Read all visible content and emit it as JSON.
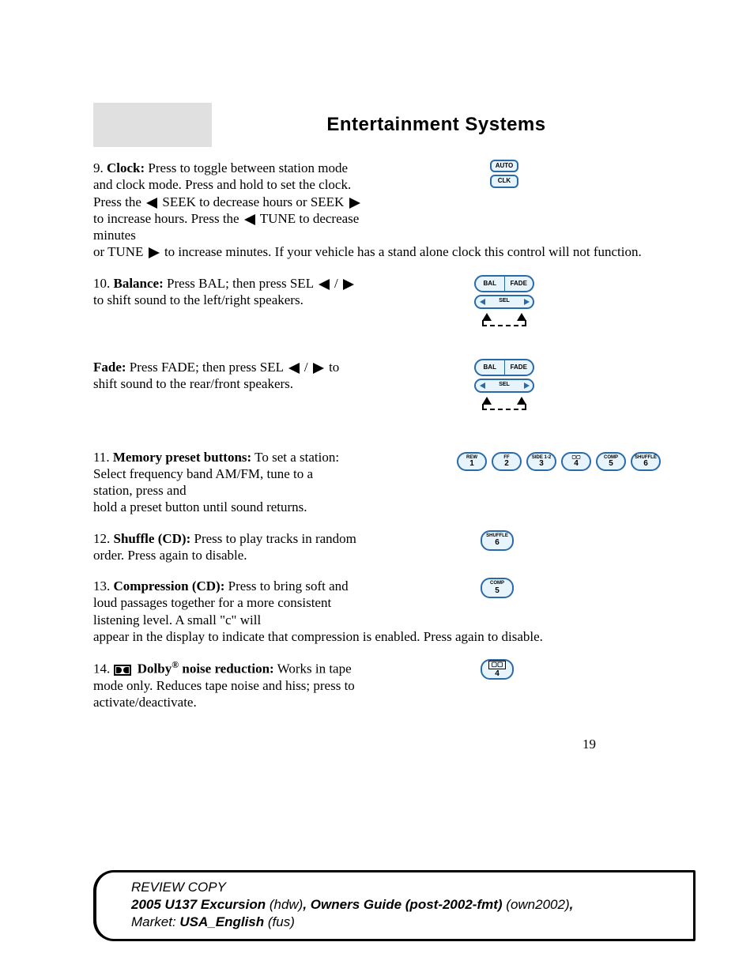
{
  "header": {
    "title": "Entertainment Systems"
  },
  "items": {
    "clock": {
      "num": "9.",
      "label": "Clock:",
      "t1": " Press to toggle between station mode and clock mode. Press and hold to set the clock. Press the ",
      "t2": " SEEK to decrease hours or SEEK ",
      "t3": " to increase hours. Press the ",
      "t4": " TUNE to decrease minutes",
      "tail1": "or TUNE ",
      "tail2": " to increase minutes. If your vehicle has a stand alone clock this control will not function.",
      "fig": {
        "auto": "AUTO",
        "clk": "CLK"
      }
    },
    "balance": {
      "num": "10.",
      "label": "Balance:",
      "t1": " Press BAL; then press SEL ",
      "t2": " / ",
      "t3": " to shift sound to the left/right speakers.",
      "fig": {
        "bal": "BAL",
        "fade": "FADE",
        "sel": "SEL"
      }
    },
    "fade": {
      "label": "Fade:",
      "t1": " Press FADE; then press SEL ",
      "t2": " / ",
      "t3": " to shift sound to the rear/front speakers.",
      "fig": {
        "bal": "BAL",
        "fade": "FADE",
        "sel": "SEL"
      }
    },
    "presets": {
      "num": "11.",
      "label": "Memory preset buttons:",
      "t1": " To set a station: Select frequency band AM/FM, tune to a station, press and",
      "tail": "hold a preset button until sound returns.",
      "buttons": [
        {
          "top": "REW",
          "num": "1"
        },
        {
          "top": "FF",
          "num": "2"
        },
        {
          "top": "SIDE 1-2",
          "num": "3"
        },
        {
          "top": "▢▢",
          "num": "4"
        },
        {
          "top": "COMP",
          "num": "5"
        },
        {
          "top": "SHUFFLE",
          "num": "6"
        }
      ]
    },
    "shuffle": {
      "num": "12.",
      "label": "Shuffle (CD):",
      "t1": " Press to play tracks in random order. Press again to disable.",
      "fig": {
        "top": "SHUFFLE",
        "num": "6"
      }
    },
    "comp": {
      "num": "13.",
      "label": "Compression (CD):",
      "t1": " Press to bring soft and loud passages together for a more consistent listening level. A small \"c\" will",
      "tail": "appear in the display to indicate that compression is enabled. Press again to disable.",
      "fig": {
        "top": "COMP",
        "num": "5"
      }
    },
    "dolby": {
      "num": "14.",
      "label": " Dolby",
      "reg": "®",
      "label2": " noise reduction:",
      "t1": " Works in tape mode only. Reduces tape noise and hiss; press to activate/deactivate.",
      "fig": {
        "num": "4"
      }
    }
  },
  "page_number": "19",
  "footer": {
    "line1": "REVIEW COPY",
    "vehicle": "2005 U137 Excursion",
    "hdw": " (hdw)",
    "comma": ", ",
    "guide": "Owners Guide (post-2002-fmt)",
    "own": " (own2002)",
    "market_label": "Market:  ",
    "market": "USA_English",
    "fus": " (fus)"
  },
  "colors": {
    "button_border": "#2a6aa8",
    "button_bg": "#e8f4fc",
    "header_gray": "#e0e0e0"
  }
}
